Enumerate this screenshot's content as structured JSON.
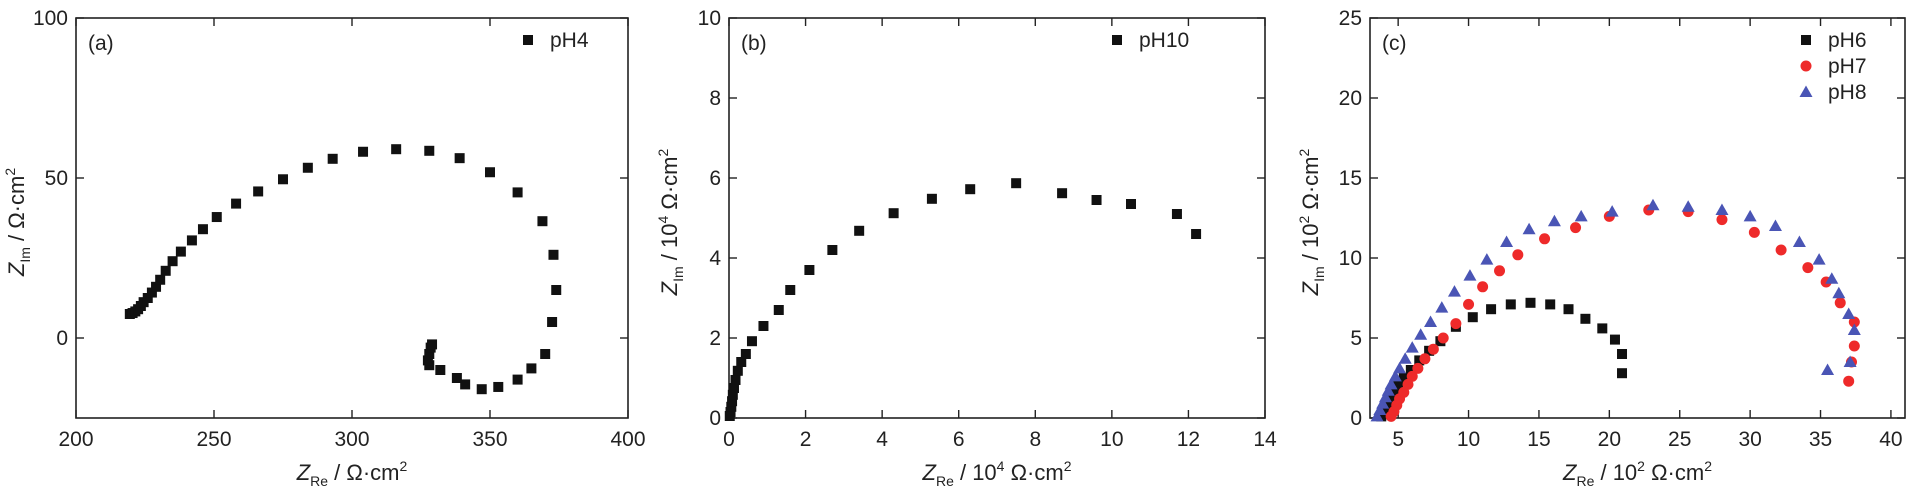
{
  "colors": {
    "black": "#111111",
    "red": "#ee2a2a",
    "blue": "#4a55b5",
    "axis": "#222222"
  },
  "chart_data": [
    {
      "type": "scatter",
      "tag": "(a)",
      "xlim": [
        200,
        400
      ],
      "ylim": [
        -25,
        100
      ],
      "xticks": [
        "200",
        "250",
        "300",
        "350",
        "400"
      ],
      "yticks": [
        "0",
        "50",
        "100"
      ],
      "xlabel": {
        "main": "Z",
        "sub": "Re",
        "unit": " / Ω·cm",
        "sup": "2"
      },
      "ylabel": {
        "main": "Z",
        "sub": "Im",
        "unit": " / Ω·cm",
        "sup": "2"
      },
      "legend_position": "top-right",
      "series": [
        {
          "name": "pH4",
          "marker": "square",
          "color_key": "black",
          "points": [
            [
              219.5,
              7.5
            ],
            [
              220.5,
              7.8
            ],
            [
              221.5,
              8.3
            ],
            [
              222.5,
              9
            ],
            [
              223.5,
              10
            ],
            [
              224.5,
              11.2
            ],
            [
              226,
              12.5
            ],
            [
              227.5,
              14.2
            ],
            [
              229,
              16
            ],
            [
              230.5,
              18.2
            ],
            [
              232.5,
              21
            ],
            [
              235,
              24
            ],
            [
              238,
              27
            ],
            [
              242,
              30.5
            ],
            [
              246,
              34
            ],
            [
              251,
              37.8
            ],
            [
              258,
              42
            ],
            [
              266,
              45.8
            ],
            [
              275,
              49.6
            ],
            [
              284,
              53.2
            ],
            [
              293,
              56
            ],
            [
              304,
              58.2
            ],
            [
              316,
              59
            ],
            [
              328,
              58.5
            ],
            [
              339,
              56.2
            ],
            [
              350,
              51.8
            ],
            [
              360,
              45.5
            ],
            [
              369,
              36.5
            ],
            [
              373,
              26
            ],
            [
              374,
              15
            ],
            [
              372.5,
              5
            ],
            [
              370,
              -5
            ],
            [
              365,
              -9.5
            ],
            [
              360,
              -13
            ],
            [
              353,
              -15.3
            ],
            [
              347,
              -16
            ],
            [
              341,
              -14.5
            ],
            [
              338,
              -12.5
            ],
            [
              332,
              -10
            ],
            [
              328,
              -8.5
            ],
            [
              327.5,
              -7
            ],
            [
              328,
              -5
            ],
            [
              328.5,
              -3
            ],
            [
              329,
              -2
            ]
          ]
        }
      ]
    },
    {
      "type": "scatter",
      "tag": "(b)",
      "xlim": [
        0,
        14
      ],
      "ylim": [
        0,
        10
      ],
      "xticks": [
        "0",
        "2",
        "4",
        "6",
        "8",
        "10",
        "12",
        "14"
      ],
      "yticks": [
        "0",
        "2",
        "4",
        "6",
        "8",
        "10"
      ],
      "xlabel": {
        "main": "Z",
        "sub": "Re",
        "unit": " / 10",
        "sup": "4",
        "unit2": " Ω·cm",
        "sup2": "2"
      },
      "ylabel": {
        "main": "Z",
        "sub": "Im",
        "unit": " / 10",
        "sup": "4",
        "unit2": " Ω·cm",
        "sup2": "2"
      },
      "legend_position": "top-right",
      "series": [
        {
          "name": "pH10",
          "marker": "square",
          "color_key": "black",
          "points": [
            [
              0.02,
              0.05
            ],
            [
              0.04,
              0.15
            ],
            [
              0.06,
              0.28
            ],
            [
              0.08,
              0.42
            ],
            [
              0.1,
              0.58
            ],
            [
              0.13,
              0.75
            ],
            [
              0.17,
              0.95
            ],
            [
              0.23,
              1.18
            ],
            [
              0.32,
              1.4
            ],
            [
              0.44,
              1.6
            ],
            [
              0.6,
              1.92
            ],
            [
              0.9,
              2.3
            ],
            [
              1.3,
              2.7
            ],
            [
              1.6,
              3.2
            ],
            [
              2.1,
              3.7
            ],
            [
              2.7,
              4.2
            ],
            [
              3.4,
              4.68
            ],
            [
              4.3,
              5.12
            ],
            [
              5.3,
              5.48
            ],
            [
              6.3,
              5.72
            ],
            [
              7.5,
              5.87
            ],
            [
              8.7,
              5.62
            ],
            [
              9.6,
              5.45
            ],
            [
              10.5,
              5.35
            ],
            [
              11.7,
              5.1
            ],
            [
              12.2,
              4.6
            ]
          ]
        }
      ]
    },
    {
      "type": "scatter",
      "tag": "(c)",
      "xlim": [
        3,
        41
      ],
      "ylim": [
        0,
        25
      ],
      "xticks": [
        "5",
        "10",
        "15",
        "20",
        "25",
        "30",
        "35",
        "40"
      ],
      "yticks": [
        "0",
        "5",
        "10",
        "15",
        "20",
        "25"
      ],
      "xlabel": {
        "main": "Z",
        "sub": "Re",
        "unit": " / 10",
        "sup": "2",
        "unit2": " Ω·cm",
        "sup2": "2"
      },
      "ylabel": {
        "main": "Z",
        "sub": "Im",
        "unit": " / 10",
        "sup": "2",
        "unit2": " Ω·cm",
        "sup2": "2"
      },
      "legend_position": "top-right",
      "series": [
        {
          "name": "pH6",
          "marker": "square",
          "color_key": "black",
          "points": [
            [
              3.8,
              0.1
            ],
            [
              4.0,
              0.4
            ],
            [
              4.2,
              0.8
            ],
            [
              4.4,
              1.2
            ],
            [
              4.7,
              1.6
            ],
            [
              5.0,
              2.0
            ],
            [
              5.4,
              2.5
            ],
            [
              5.9,
              3.0
            ],
            [
              6.5,
              3.6
            ],
            [
              7.2,
              4.2
            ],
            [
              8.0,
              4.8
            ],
            [
              9.1,
              5.7
            ],
            [
              10.3,
              6.3
            ],
            [
              11.6,
              6.8
            ],
            [
              13.0,
              7.1
            ],
            [
              14.4,
              7.2
            ],
            [
              15.8,
              7.1
            ],
            [
              17.1,
              6.8
            ],
            [
              18.3,
              6.2
            ],
            [
              19.5,
              5.6
            ],
            [
              20.4,
              4.9
            ],
            [
              20.9,
              4.0
            ],
            [
              20.9,
              2.8
            ]
          ]
        },
        {
          "name": "pH7",
          "marker": "circle",
          "color_key": "red",
          "points": [
            [
              4.5,
              0.1
            ],
            [
              4.7,
              0.4
            ],
            [
              4.9,
              0.8
            ],
            [
              5.1,
              1.2
            ],
            [
              5.4,
              1.6
            ],
            [
              5.7,
              2.1
            ],
            [
              6.0,
              2.6
            ],
            [
              6.4,
              3.1
            ],
            [
              6.9,
              3.7
            ],
            [
              7.5,
              4.3
            ],
            [
              8.2,
              5.0
            ],
            [
              9.1,
              5.9
            ],
            [
              10.0,
              7.1
            ],
            [
              11.0,
              8.2
            ],
            [
              12.2,
              9.2
            ],
            [
              13.5,
              10.2
            ],
            [
              15.4,
              11.2
            ],
            [
              17.6,
              11.9
            ],
            [
              20.0,
              12.6
            ],
            [
              22.8,
              13.0
            ],
            [
              25.6,
              12.9
            ],
            [
              28.0,
              12.4
            ],
            [
              30.3,
              11.6
            ],
            [
              32.2,
              10.5
            ],
            [
              34.1,
              9.4
            ],
            [
              35.4,
              8.5
            ],
            [
              36.4,
              7.2
            ],
            [
              37.4,
              6.0
            ],
            [
              37.4,
              4.5
            ],
            [
              37.2,
              3.5
            ],
            [
              37.0,
              2.3
            ]
          ]
        },
        {
          "name": "pH8",
          "marker": "triangle",
          "color_key": "blue",
          "points": [
            [
              3.5,
              0.1
            ],
            [
              3.7,
              0.5
            ],
            [
              3.9,
              0.9
            ],
            [
              4.1,
              1.3
            ],
            [
              4.3,
              1.7
            ],
            [
              4.5,
              2.1
            ],
            [
              4.8,
              2.6
            ],
            [
              5.1,
              3.1
            ],
            [
              5.5,
              3.7
            ],
            [
              6.0,
              4.4
            ],
            [
              6.6,
              5.2
            ],
            [
              7.3,
              6.0
            ],
            [
              8.1,
              6.9
            ],
            [
              9.0,
              7.9
            ],
            [
              10.1,
              8.9
            ],
            [
              11.3,
              9.9
            ],
            [
              12.7,
              11.0
            ],
            [
              14.3,
              11.8
            ],
            [
              16.1,
              12.3
            ],
            [
              18.0,
              12.6
            ],
            [
              20.2,
              12.9
            ],
            [
              23.1,
              13.3
            ],
            [
              25.6,
              13.2
            ],
            [
              28.0,
              13.0
            ],
            [
              30.0,
              12.6
            ],
            [
              31.8,
              12.0
            ],
            [
              33.5,
              11.0
            ],
            [
              34.9,
              9.9
            ],
            [
              35.8,
              8.7
            ],
            [
              36.3,
              7.8
            ],
            [
              37.0,
              6.5
            ],
            [
              37.4,
              5.5
            ],
            [
              37.1,
              3.5
            ],
            [
              35.5,
              3.0
            ]
          ]
        }
      ]
    }
  ]
}
